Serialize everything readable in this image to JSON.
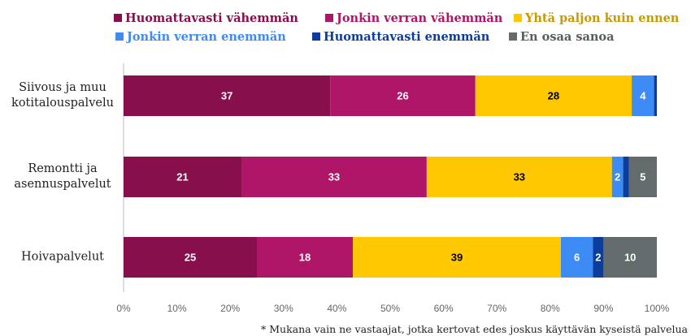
{
  "chart_data": {
    "type": "stacked_barh",
    "normalize": true,
    "categories": [
      "Siivous ja muu kotitalouspalvelu",
      "Remontti ja asennuspalvelut",
      "Hoivapalvelut"
    ],
    "series": [
      {
        "name": "Huomattavasti vähemmän",
        "color": "#870f4c",
        "legend_text_color": "#870f4c",
        "label_color": "#ffffff",
        "values": [
          37,
          21,
          25
        ]
      },
      {
        "name": "Jonkin verran vähemmän",
        "color": "#b01668",
        "legend_text_color": "#b01668",
        "label_color": "#ffffff",
        "values": [
          26,
          33,
          18
        ]
      },
      {
        "name": "Yhtä paljon kuin ennen",
        "color": "#ffc800",
        "legend_text_color": "#c99a00",
        "label_color": "#000000",
        "values": [
          28,
          33,
          39
        ]
      },
      {
        "name": "Jonkin verran enemmän",
        "color": "#3d8cf5",
        "legend_text_color": "#3d8cf5",
        "label_color": "#ffffff",
        "values": [
          4,
          2,
          6
        ]
      },
      {
        "name": "Huomattavasti enemmän",
        "color": "#0b3d9c",
        "legend_text_color": "#0b3d9c",
        "label_color": "#ffffff",
        "values": [
          0.5,
          1,
          2
        ],
        "value_labels": [
          null,
          null,
          "2"
        ]
      },
      {
        "name": "En osaa sanoa",
        "color": "#636b6d",
        "legend_text_color": "#555d5f",
        "label_color": "#ffffff",
        "values": [
          0,
          5,
          10
        ],
        "value_labels": [
          null,
          "5",
          "10"
        ]
      }
    ],
    "xlim": [
      0,
      100
    ],
    "xticks": [
      {
        "value": 0,
        "label": "0%"
      },
      {
        "value": 10,
        "label": "10%"
      },
      {
        "value": 20,
        "label": "20%"
      },
      {
        "value": 30,
        "label": "30%"
      },
      {
        "value": 40,
        "label": "40%"
      },
      {
        "value": 50,
        "label": "50%"
      },
      {
        "value": 60,
        "label": "60%"
      },
      {
        "value": 70,
        "label": "70%"
      },
      {
        "value": 80,
        "label": "80%"
      },
      {
        "value": 90,
        "label": "90%"
      },
      {
        "value": 100,
        "label": "100%"
      }
    ],
    "footnote": "* Mukana vain ne vastaajat, jotka kertovat edes joskus käyttävän kyseistä palvelua"
  }
}
